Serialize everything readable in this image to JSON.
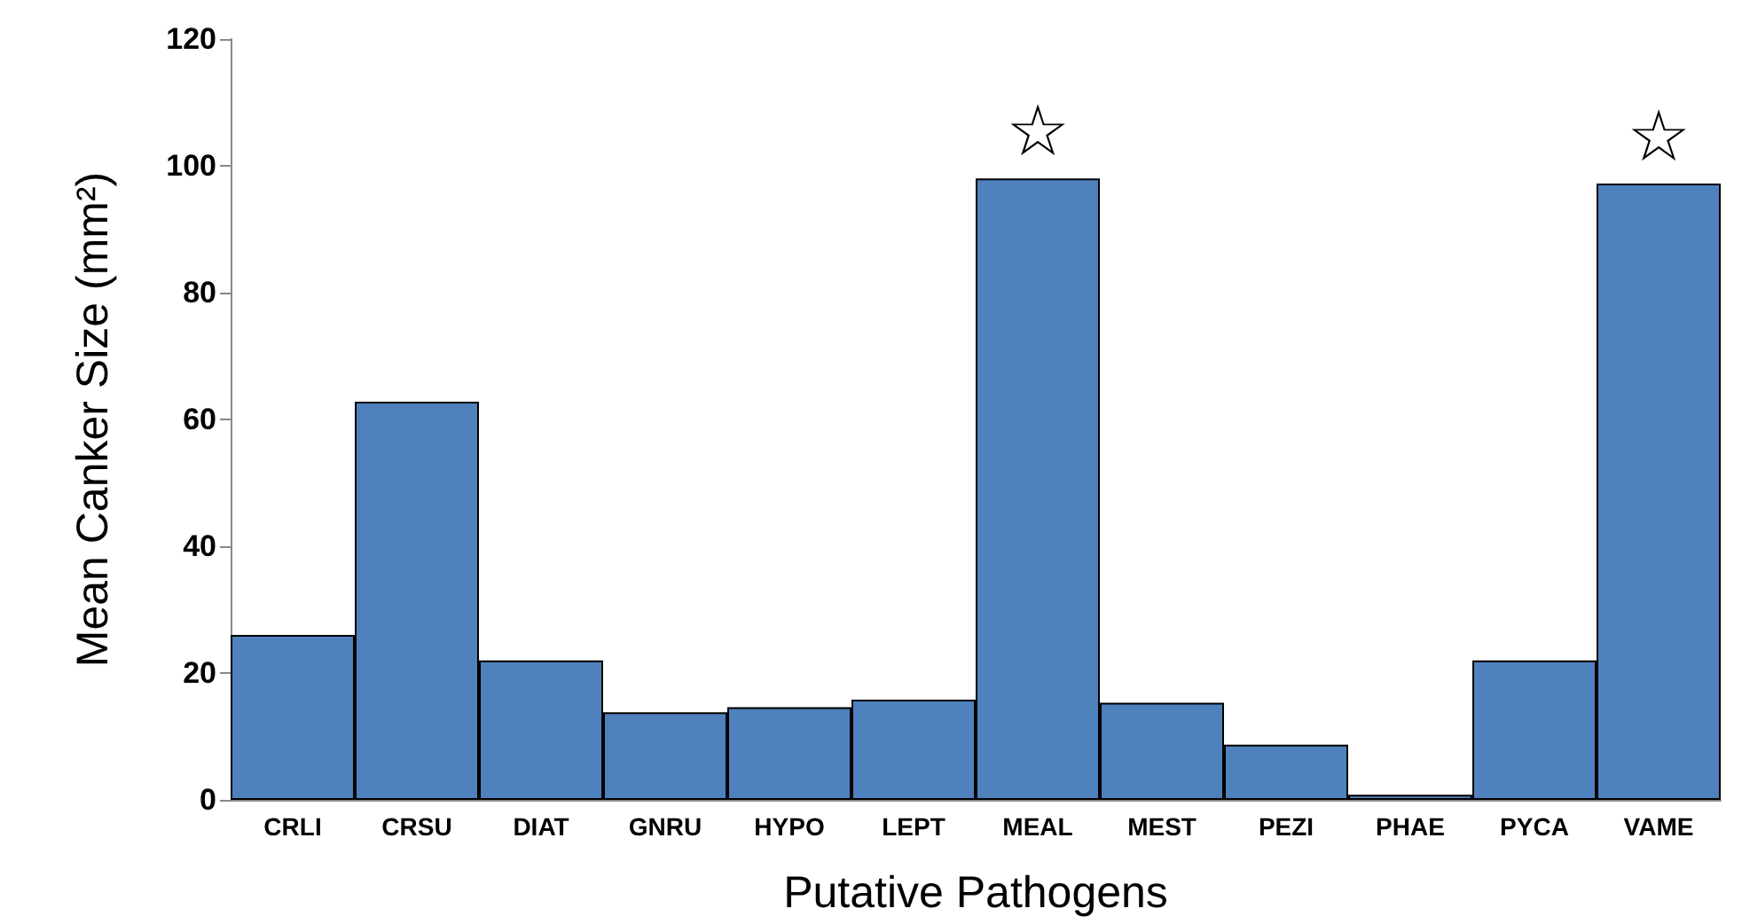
{
  "chart_data": {
    "type": "bar",
    "xlabel": "Putative Pathogens",
    "ylabel": "Mean Canker Size (mm²)",
    "categories": [
      "CRLI",
      "CRSU",
      "DIAT",
      "GNRU",
      "HYPO",
      "LEPT",
      "MEAL",
      "MEST",
      "PEZI",
      "PHAE",
      "PYCA",
      "VAME"
    ],
    "values": [
      26,
      62.8,
      22,
      13.8,
      14.6,
      15.8,
      98,
      15.3,
      8.7,
      0.8,
      22,
      97.2
    ],
    "color": "#4f81bd",
    "ylim": [
      0,
      120
    ],
    "yticks": [
      0,
      20,
      40,
      60,
      80,
      100,
      120
    ],
    "grid": false,
    "annotations": [
      {
        "text": "☆",
        "x": "MEAL",
        "y": 98
      },
      {
        "text": "☆",
        "x": "VAME",
        "y": 97.2
      }
    ]
  }
}
